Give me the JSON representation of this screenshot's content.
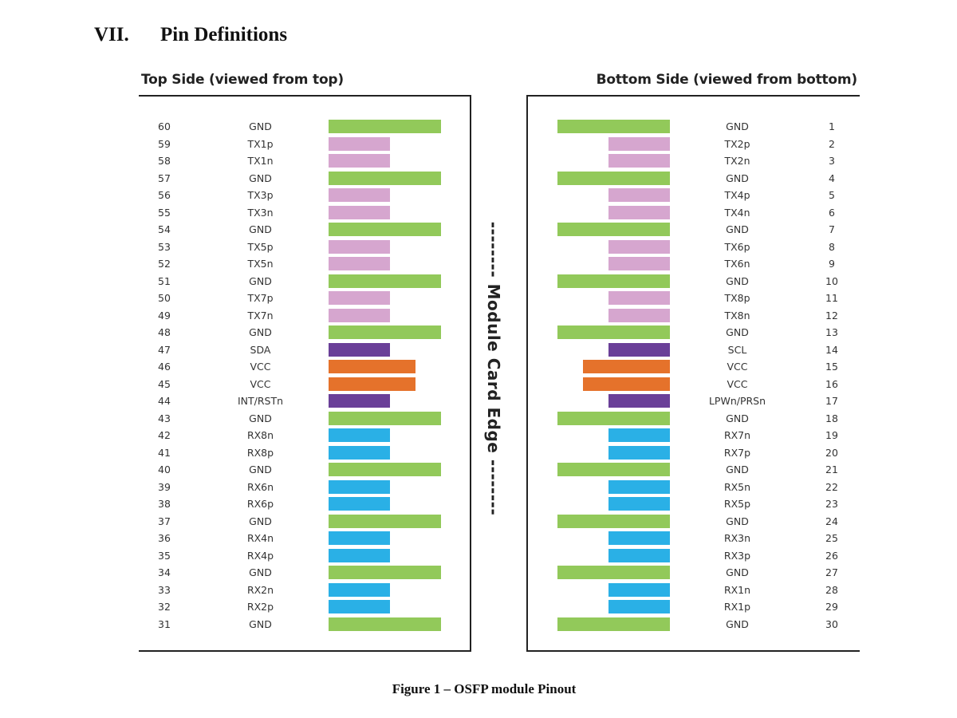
{
  "heading": {
    "number": "VII.",
    "title": "Pin Definitions"
  },
  "top_side": {
    "title": "Top Side (viewed from top)",
    "pins": [
      {
        "num": "60",
        "name": "GND",
        "type": "gnd"
      },
      {
        "num": "59",
        "name": "TX1p",
        "type": "tx"
      },
      {
        "num": "58",
        "name": "TX1n",
        "type": "tx"
      },
      {
        "num": "57",
        "name": "GND",
        "type": "gnd"
      },
      {
        "num": "56",
        "name": "TX3p",
        "type": "tx"
      },
      {
        "num": "55",
        "name": "TX3n",
        "type": "tx"
      },
      {
        "num": "54",
        "name": "GND",
        "type": "gnd"
      },
      {
        "num": "53",
        "name": "TX5p",
        "type": "tx"
      },
      {
        "num": "52",
        "name": "TX5n",
        "type": "tx"
      },
      {
        "num": "51",
        "name": "GND",
        "type": "gnd"
      },
      {
        "num": "50",
        "name": "TX7p",
        "type": "tx"
      },
      {
        "num": "49",
        "name": "TX7n",
        "type": "tx"
      },
      {
        "num": "48",
        "name": "GND",
        "type": "gnd"
      },
      {
        "num": "47",
        "name": "SDA",
        "type": "ctrl"
      },
      {
        "num": "46",
        "name": "VCC",
        "type": "vcc"
      },
      {
        "num": "45",
        "name": "VCC",
        "type": "vcc"
      },
      {
        "num": "44",
        "name": "INT/RSTn",
        "type": "ctrl"
      },
      {
        "num": "43",
        "name": "GND",
        "type": "gnd"
      },
      {
        "num": "42",
        "name": "RX8n",
        "type": "rx"
      },
      {
        "num": "41",
        "name": "RX8p",
        "type": "rx"
      },
      {
        "num": "40",
        "name": "GND",
        "type": "gnd"
      },
      {
        "num": "39",
        "name": "RX6n",
        "type": "rx"
      },
      {
        "num": "38",
        "name": "RX6p",
        "type": "rx"
      },
      {
        "num": "37",
        "name": "GND",
        "type": "gnd"
      },
      {
        "num": "36",
        "name": "RX4n",
        "type": "rx"
      },
      {
        "num": "35",
        "name": "RX4p",
        "type": "rx"
      },
      {
        "num": "34",
        "name": "GND",
        "type": "gnd"
      },
      {
        "num": "33",
        "name": "RX2n",
        "type": "rx"
      },
      {
        "num": "32",
        "name": "RX2p",
        "type": "rx"
      },
      {
        "num": "31",
        "name": "GND",
        "type": "gnd"
      }
    ]
  },
  "bottom_side": {
    "title": "Bottom Side (viewed from bottom)",
    "pins": [
      {
        "num": "1",
        "name": "GND",
        "type": "gnd"
      },
      {
        "num": "2",
        "name": "TX2p",
        "type": "tx"
      },
      {
        "num": "3",
        "name": "TX2n",
        "type": "tx"
      },
      {
        "num": "4",
        "name": "GND",
        "type": "gnd"
      },
      {
        "num": "5",
        "name": "TX4p",
        "type": "tx"
      },
      {
        "num": "6",
        "name": "TX4n",
        "type": "tx"
      },
      {
        "num": "7",
        "name": "GND",
        "type": "gnd"
      },
      {
        "num": "8",
        "name": "TX6p",
        "type": "tx"
      },
      {
        "num": "9",
        "name": "TX6n",
        "type": "tx"
      },
      {
        "num": "10",
        "name": "GND",
        "type": "gnd"
      },
      {
        "num": "11",
        "name": "TX8p",
        "type": "tx"
      },
      {
        "num": "12",
        "name": "TX8n",
        "type": "tx"
      },
      {
        "num": "13",
        "name": "GND",
        "type": "gnd"
      },
      {
        "num": "14",
        "name": "SCL",
        "type": "ctrl"
      },
      {
        "num": "15",
        "name": "VCC",
        "type": "vcc"
      },
      {
        "num": "16",
        "name": "VCC",
        "type": "vcc"
      },
      {
        "num": "17",
        "name": "LPWn/PRSn",
        "type": "ctrl"
      },
      {
        "num": "18",
        "name": "GND",
        "type": "gnd"
      },
      {
        "num": "19",
        "name": "RX7n",
        "type": "rx"
      },
      {
        "num": "20",
        "name": "RX7p",
        "type": "rx"
      },
      {
        "num": "21",
        "name": "GND",
        "type": "gnd"
      },
      {
        "num": "22",
        "name": "RX5n",
        "type": "rx"
      },
      {
        "num": "23",
        "name": "RX5p",
        "type": "rx"
      },
      {
        "num": "24",
        "name": "GND",
        "type": "gnd"
      },
      {
        "num": "25",
        "name": "RX3n",
        "type": "rx"
      },
      {
        "num": "26",
        "name": "RX3p",
        "type": "rx"
      },
      {
        "num": "27",
        "name": "GND",
        "type": "gnd"
      },
      {
        "num": "28",
        "name": "RX1n",
        "type": "rx"
      },
      {
        "num": "29",
        "name": "RX1p",
        "type": "rx"
      },
      {
        "num": "30",
        "name": "GND",
        "type": "gnd"
      }
    ]
  },
  "edge_label": "-------- Module Card Edge --------",
  "pin_type_colors": {
    "gnd": "#92c95a",
    "tx": "#d6a6cf",
    "rx": "#2ab0e6",
    "ctrl": "#6a3f98",
    "vcc": "#e5722b"
  },
  "caption": "Figure 1 – OSFP module Pinout"
}
